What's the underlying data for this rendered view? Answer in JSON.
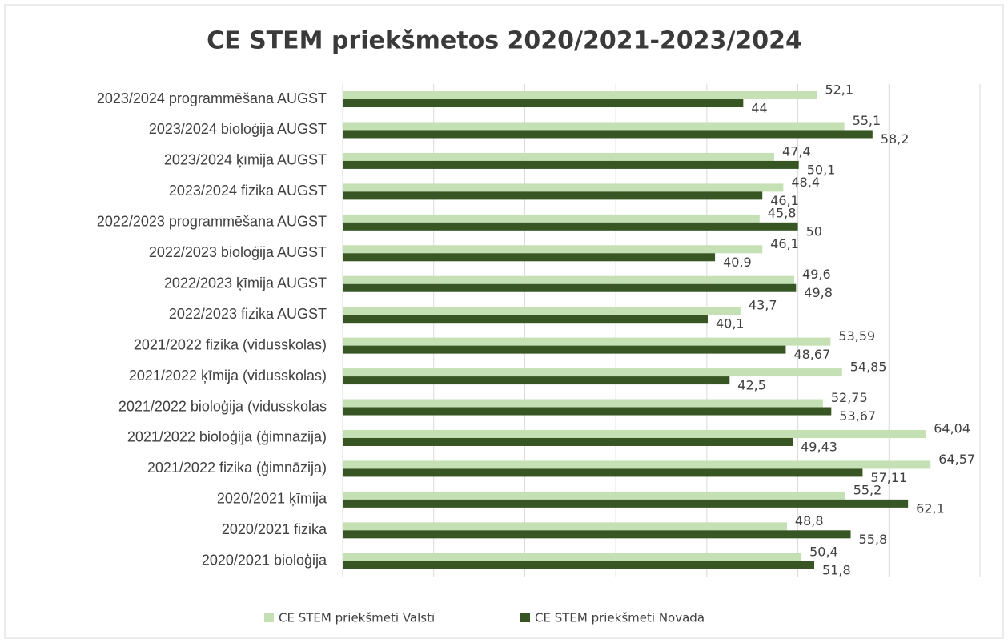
{
  "chart_data": {
    "type": "hbar",
    "title": "CE STEM priekšmetos 2020/2021-2023/2024",
    "categories": [
      "2023/2024 programmēšana AUGST",
      "2023/2024 bioloģija AUGST",
      "2023/2024 ķīmija AUGST",
      "2023/2024 fizika AUGST",
      "2022/2023 programmēšana AUGST",
      "2022/2023 bioloģija AUGST",
      "2022/2023 ķīmija AUGST",
      "2022/2023 fizika AUGST",
      "2021/2022 fizika (vidusskolas)",
      "2021/2022 ķīmija (vidusskolas)",
      "2021/2022 bioloģija (vidusskolas",
      "2021/2022 bioloģija (ģimnāzija)",
      "2021/2022 fizika (ģimnāzija)",
      "2020/2021 ķīmija",
      "2020/2021 fizika",
      "2020/2021 bioloģija"
    ],
    "series": [
      {
        "name": "CE STEM priekšmeti Valstī",
        "color": "#c5e0b4",
        "values": [
          52.1,
          55.1,
          47.4,
          48.4,
          45.8,
          46.1,
          49.6,
          43.7,
          53.59,
          54.85,
          52.75,
          64.04,
          64.57,
          55.2,
          48.8,
          50.4
        ],
        "value_labels": [
          "52,1",
          "55,1",
          "47,4",
          "48,4",
          "45,8",
          "46,1",
          "49,6",
          "43,7",
          "53,59",
          "54,85",
          "52,75",
          "64,04",
          "64,57",
          "55,2",
          "48,8",
          "50,4"
        ]
      },
      {
        "name": "CE STEM priekšmeti Novadā",
        "color": "#375623",
        "values": [
          44,
          58.2,
          50.1,
          46.1,
          50,
          40.9,
          49.8,
          40.1,
          48.67,
          42.5,
          53.67,
          49.43,
          57.11,
          62.1,
          55.8,
          51.8
        ],
        "value_labels": [
          "44",
          "58,2",
          "50,1",
          "46,1",
          "50",
          "40,9",
          "49,8",
          "40,1",
          "48,67",
          "42,5",
          "53,67",
          "49,43",
          "57,11",
          "62,1",
          "55,8",
          "51,8"
        ]
      }
    ],
    "xlim": [
      0,
      70
    ],
    "xticks": [
      0,
      10,
      20,
      30,
      40,
      50,
      60,
      70
    ],
    "grid": true,
    "legend": "bottom"
  }
}
